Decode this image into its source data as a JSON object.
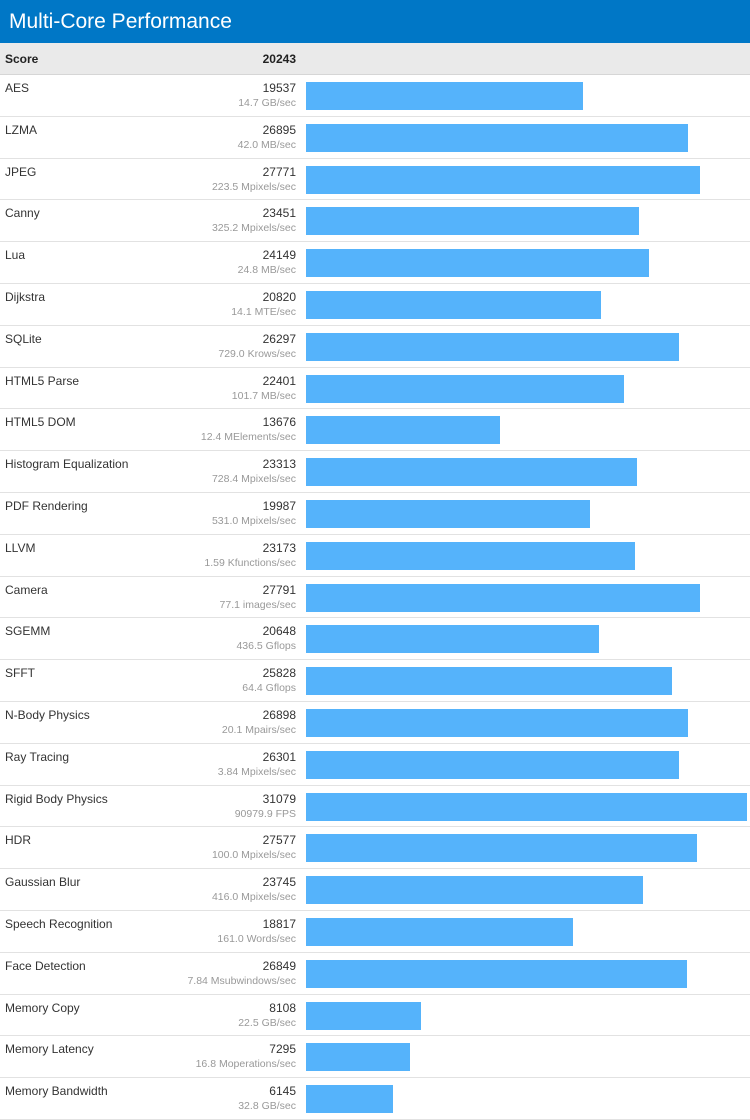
{
  "header": {
    "title": "Multi-Core Performance"
  },
  "summary": {
    "label": "Score",
    "value": "20243"
  },
  "colors": {
    "header_bg": "#0077c6",
    "bar": "#55b3fb"
  },
  "chart_data": {
    "type": "bar",
    "title": "Multi-Core Performance",
    "overall_score": 20243,
    "xlim": [
      0,
      31079
    ],
    "grid": false,
    "categories": [
      "AES",
      "LZMA",
      "JPEG",
      "Canny",
      "Lua",
      "Dijkstra",
      "SQLite",
      "HTML5 Parse",
      "HTML5 DOM",
      "Histogram Equalization",
      "PDF Rendering",
      "LLVM",
      "Camera",
      "SGEMM",
      "SFFT",
      "N-Body Physics",
      "Ray Tracing",
      "Rigid Body Physics",
      "HDR",
      "Gaussian Blur",
      "Speech Recognition",
      "Face Detection",
      "Memory Copy",
      "Memory Latency",
      "Memory Bandwidth"
    ],
    "values": [
      19537,
      26895,
      27771,
      23451,
      24149,
      20820,
      26297,
      22401,
      13676,
      23313,
      19987,
      23173,
      27791,
      20648,
      25828,
      26898,
      26301,
      31079,
      27577,
      23745,
      18817,
      26849,
      8108,
      7295,
      6145
    ],
    "rates": [
      "14.7 GB/sec",
      "42.0 MB/sec",
      "223.5 Mpixels/sec",
      "325.2 Mpixels/sec",
      "24.8 MB/sec",
      "14.1 MTE/sec",
      "729.0 Krows/sec",
      "101.7 MB/sec",
      "12.4 MElements/sec",
      "728.4 Mpixels/sec",
      "531.0 Mpixels/sec",
      "1.59 Kfunctions/sec",
      "77.1 images/sec",
      "436.5 Gflops",
      "64.4 Gflops",
      "20.1 Mpairs/sec",
      "3.84 Mpixels/sec",
      "90979.9 FPS",
      "100.0 Mpixels/sec",
      "416.0 Mpixels/sec",
      "161.0 Words/sec",
      "7.84 Msubwindows/sec",
      "22.5 GB/sec",
      "16.8 Moperations/sec",
      "32.8 GB/sec"
    ]
  }
}
